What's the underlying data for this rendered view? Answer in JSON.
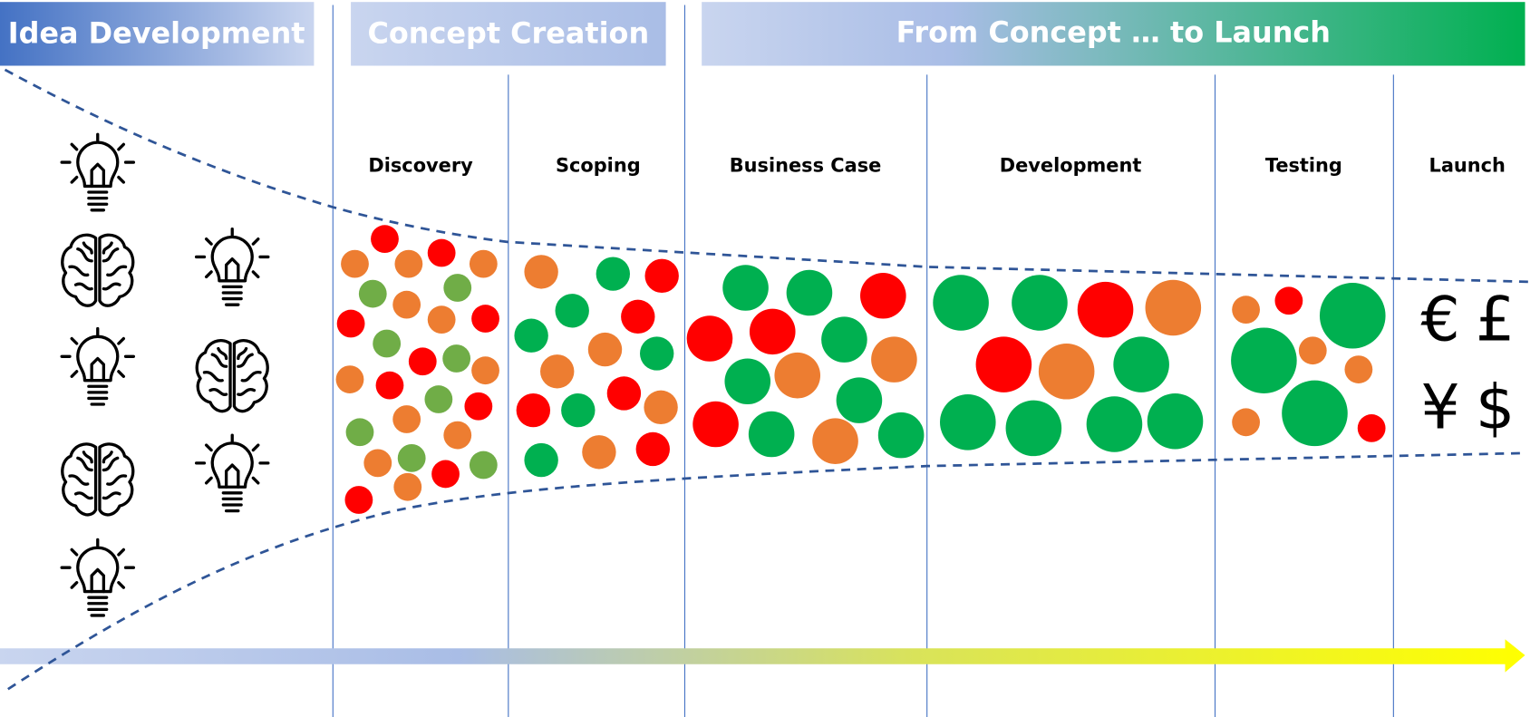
{
  "headers": {
    "idea": "Idea Development",
    "concept": "Concept Creation",
    "launch": "From Concept … to Launch"
  },
  "stages": [
    "Discovery",
    "Scoping",
    "Business Case",
    "Development",
    "Testing",
    "Launch"
  ],
  "currencies": [
    "€",
    "£",
    "¥",
    "$"
  ]
}
